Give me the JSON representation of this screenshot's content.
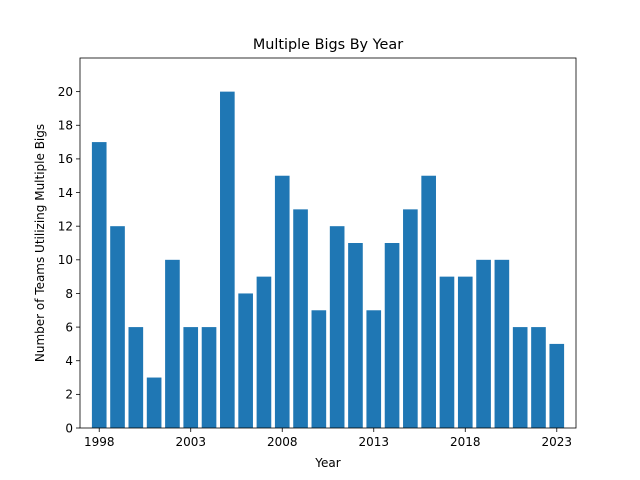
{
  "chart_data": {
    "type": "bar",
    "title": "Multiple Bigs By Year",
    "xlabel": "Year",
    "ylabel": "Number of Teams Utilizing Multiple Bigs",
    "categories": [
      1998,
      1999,
      2000,
      2001,
      2002,
      2003,
      2004,
      2005,
      2006,
      2007,
      2008,
      2009,
      2010,
      2011,
      2012,
      2013,
      2014,
      2015,
      2016,
      2017,
      2018,
      2019,
      2020,
      2021,
      2022,
      2023
    ],
    "values": [
      17,
      12,
      6,
      3,
      10,
      6,
      6,
      20,
      8,
      9,
      15,
      13,
      7,
      12,
      11,
      7,
      11,
      13,
      15,
      9,
      9,
      10,
      10,
      6,
      6,
      5
    ],
    "xticks": [
      "1998",
      "2003",
      "2008",
      "2013",
      "2018",
      "2023"
    ],
    "yticks": [
      "0",
      "2",
      "4",
      "6",
      "8",
      "10",
      "12",
      "14",
      "16",
      "18",
      "20"
    ],
    "ylim": [
      0,
      22
    ],
    "xlim": [
      1996.95,
      2024.05
    ],
    "bar_color": "#1f77b4",
    "grid": false,
    "legend": "none"
  }
}
